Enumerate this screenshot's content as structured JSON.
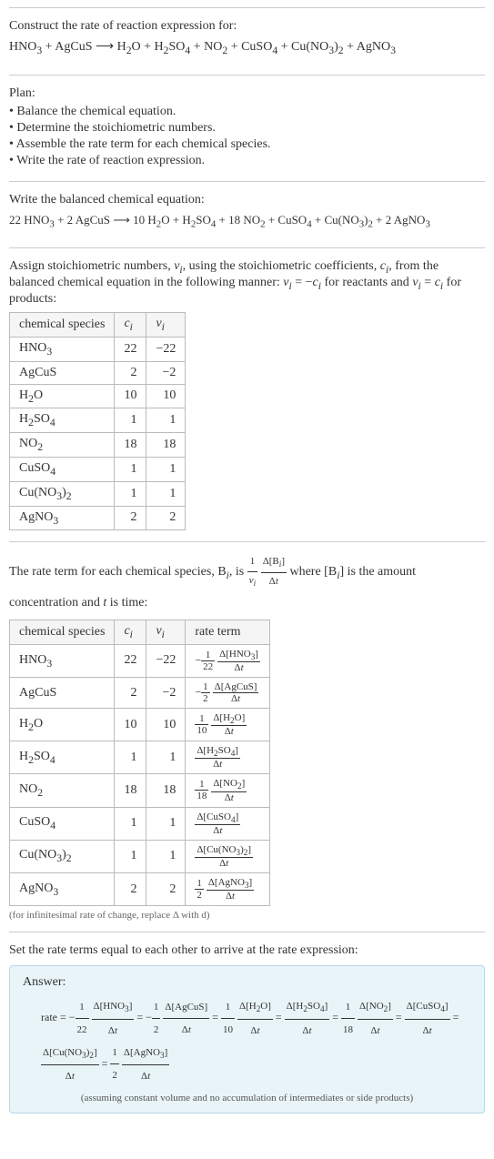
{
  "construct": {
    "heading": "Construct the rate of reaction expression for:",
    "equation_html": "HNO<sub>3</sub> + AgCuS  ⟶  H<sub>2</sub>O + H<sub>2</sub>SO<sub>4</sub> + NO<sub>2</sub> + CuSO<sub>4</sub> + Cu(NO<sub>3</sub>)<sub>2</sub> + AgNO<sub>3</sub>"
  },
  "plan": {
    "heading": "Plan:",
    "items": [
      "Balance the chemical equation.",
      "Determine the stoichiometric numbers.",
      "Assemble the rate term for each chemical species.",
      "Write the rate of reaction expression."
    ]
  },
  "balanced": {
    "heading": "Write the balanced chemical equation:",
    "equation_html": "22 HNO<sub>3</sub> + 2 AgCuS  ⟶  10 H<sub>2</sub>O + H<sub>2</sub>SO<sub>4</sub> + 18 NO<sub>2</sub> + CuSO<sub>4</sub> + Cu(NO<sub>3</sub>)<sub>2</sub> + 2 AgNO<sub>3</sub>"
  },
  "assign": {
    "text_html": "Assign stoichiometric numbers, <i>ν<sub>i</sub></i>, using the stoichiometric coefficients, <i>c<sub>i</sub></i>, from the balanced chemical equation in the following manner: <i>ν<sub>i</sub></i> = −<i>c<sub>i</sub></i> for reactants and <i>ν<sub>i</sub></i> = <i>c<sub>i</sub></i> for products:",
    "table": {
      "headers": [
        "chemical species",
        "cᵢ",
        "νᵢ"
      ],
      "headers_html": [
        "chemical species",
        "<i>c<sub>i</sub></i>",
        "<i>ν<sub>i</sub></i>"
      ],
      "rows": [
        {
          "species_html": "HNO<sub>3</sub>",
          "c": "22",
          "nu": "−22"
        },
        {
          "species_html": "AgCuS",
          "c": "2",
          "nu": "−2"
        },
        {
          "species_html": "H<sub>2</sub>O",
          "c": "10",
          "nu": "10"
        },
        {
          "species_html": "H<sub>2</sub>SO<sub>4</sub>",
          "c": "1",
          "nu": "1"
        },
        {
          "species_html": "NO<sub>2</sub>",
          "c": "18",
          "nu": "18"
        },
        {
          "species_html": "CuSO<sub>4</sub>",
          "c": "1",
          "nu": "1"
        },
        {
          "species_html": "Cu(NO<sub>3</sub>)<sub>2</sub>",
          "c": "1",
          "nu": "1"
        },
        {
          "species_html": "AgNO<sub>3</sub>",
          "c": "2",
          "nu": "2"
        }
      ]
    }
  },
  "rateterm": {
    "text_html": "The rate term for each chemical species, B<sub><i>i</i></sub>, is <span class=\"frac\"><span class=\"num\">1</span><span class=\"den\"><i>ν<sub>i</sub></i></span></span> <span class=\"frac\"><span class=\"num\">Δ[B<sub><i>i</i></sub>]</span><span class=\"den\">Δ<i>t</i></span></span> where [B<sub><i>i</i></sub>] is the amount concentration and <i>t</i> is time:",
    "table": {
      "headers_html": [
        "chemical species",
        "<i>c<sub>i</sub></i>",
        "<i>ν<sub>i</sub></i>",
        "rate term"
      ],
      "rows": [
        {
          "species_html": "HNO<sub>3</sub>",
          "c": "22",
          "nu": "−22",
          "rate_html": "−<span class=\"frac\"><span class=\"num\">1</span><span class=\"den\">22</span></span> <span class=\"frac\"><span class=\"num\">Δ[HNO<sub>3</sub>]</span><span class=\"den\">Δ<i>t</i></span></span>"
        },
        {
          "species_html": "AgCuS",
          "c": "2",
          "nu": "−2",
          "rate_html": "−<span class=\"frac\"><span class=\"num\">1</span><span class=\"den\">2</span></span> <span class=\"frac\"><span class=\"num\">Δ[AgCuS]</span><span class=\"den\">Δ<i>t</i></span></span>"
        },
        {
          "species_html": "H<sub>2</sub>O",
          "c": "10",
          "nu": "10",
          "rate_html": "<span class=\"frac\"><span class=\"num\">1</span><span class=\"den\">10</span></span> <span class=\"frac\"><span class=\"num\">Δ[H<sub>2</sub>O]</span><span class=\"den\">Δ<i>t</i></span></span>"
        },
        {
          "species_html": "H<sub>2</sub>SO<sub>4</sub>",
          "c": "1",
          "nu": "1",
          "rate_html": "<span class=\"frac\"><span class=\"num\">Δ[H<sub>2</sub>SO<sub>4</sub>]</span><span class=\"den\">Δ<i>t</i></span></span>"
        },
        {
          "species_html": "NO<sub>2</sub>",
          "c": "18",
          "nu": "18",
          "rate_html": "<span class=\"frac\"><span class=\"num\">1</span><span class=\"den\">18</span></span> <span class=\"frac\"><span class=\"num\">Δ[NO<sub>2</sub>]</span><span class=\"den\">Δ<i>t</i></span></span>"
        },
        {
          "species_html": "CuSO<sub>4</sub>",
          "c": "1",
          "nu": "1",
          "rate_html": "<span class=\"frac\"><span class=\"num\">Δ[CuSO<sub>4</sub>]</span><span class=\"den\">Δ<i>t</i></span></span>"
        },
        {
          "species_html": "Cu(NO<sub>3</sub>)<sub>2</sub>",
          "c": "1",
          "nu": "1",
          "rate_html": "<span class=\"frac\"><span class=\"num\">Δ[Cu(NO<sub>3</sub>)<sub>2</sub>]</span><span class=\"den\">Δ<i>t</i></span></span>"
        },
        {
          "species_html": "AgNO<sub>3</sub>",
          "c": "2",
          "nu": "2",
          "rate_html": "<span class=\"frac\"><span class=\"num\">1</span><span class=\"den\">2</span></span> <span class=\"frac\"><span class=\"num\">Δ[AgNO<sub>3</sub>]</span><span class=\"den\">Δ<i>t</i></span></span>"
        }
      ]
    },
    "note": "(for infinitesimal rate of change, replace Δ with d)"
  },
  "final": {
    "heading": "Set the rate terms equal to each other to arrive at the rate expression:",
    "answer_label": "Answer:",
    "answer_html": "rate = −<span class=\"frac\"><span class=\"num\">1</span><span class=\"den\">22</span></span> <span class=\"frac\"><span class=\"num\">Δ[HNO<sub>3</sub>]</span><span class=\"den\">Δ<i>t</i></span></span> = −<span class=\"frac\"><span class=\"num\">1</span><span class=\"den\">2</span></span> <span class=\"frac\"><span class=\"num\">Δ[AgCuS]</span><span class=\"den\">Δ<i>t</i></span></span> = <span class=\"frac\"><span class=\"num\">1</span><span class=\"den\">10</span></span> <span class=\"frac\"><span class=\"num\">Δ[H<sub>2</sub>O]</span><span class=\"den\">Δ<i>t</i></span></span> = <span class=\"frac\"><span class=\"num\">Δ[H<sub>2</sub>SO<sub>4</sub>]</span><span class=\"den\">Δ<i>t</i></span></span> = <span class=\"frac\"><span class=\"num\">1</span><span class=\"den\">18</span></span> <span class=\"frac\"><span class=\"num\">Δ[NO<sub>2</sub>]</span><span class=\"den\">Δ<i>t</i></span></span> = <span class=\"frac\"><span class=\"num\">Δ[CuSO<sub>4</sub>]</span><span class=\"den\">Δ<i>t</i></span></span> = <span class=\"frac\"><span class=\"num\">Δ[Cu(NO<sub>3</sub>)<sub>2</sub>]</span><span class=\"den\">Δ<i>t</i></span></span> = <span class=\"frac\"><span class=\"num\">1</span><span class=\"den\">2</span></span> <span class=\"frac\"><span class=\"num\">Δ[AgNO<sub>3</sub>]</span><span class=\"den\">Δ<i>t</i></span></span>",
    "answer_note": "(assuming constant volume and no accumulation of intermediates or side products)"
  },
  "style": {
    "body_bg": "#ffffff",
    "text_color": "#333333",
    "border_color": "#cccccc",
    "table_border": "#bbbbbb",
    "table_header_bg": "#f5f5f5",
    "answer_bg": "#e8f4f8",
    "answer_border": "#b8d8e8",
    "base_fontsize": 14,
    "note_fontsize": 11
  }
}
